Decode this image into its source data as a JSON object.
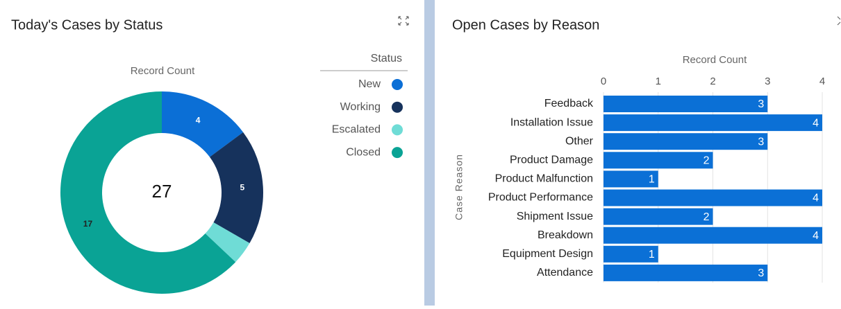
{
  "chart_data": [
    {
      "type": "donut",
      "title": "Today's Cases by Status",
      "axis_label": "Record Count",
      "legend_title": "Status",
      "total": 27,
      "categories": [
        "New",
        "Working",
        "Escalated",
        "Closed"
      ],
      "values": [
        4,
        5,
        1,
        17
      ],
      "value_labels": [
        "4",
        "5",
        null,
        "17"
      ],
      "colors": [
        "#0b6fd6",
        "#16325c",
        "#6fdcd6",
        "#0aa395"
      ]
    },
    {
      "type": "hbar",
      "title": "Open Cases by Reason",
      "x_label": "Record Count",
      "y_label": "Case Reason",
      "categories": [
        "Feedback",
        "Installation Issue",
        "Other",
        "Product Damage",
        "Product Malfunction",
        "Product Performance",
        "Shipment Issue",
        "Breakdown",
        "Equipment Design",
        "Attendance"
      ],
      "values": [
        3,
        4,
        3,
        2,
        1,
        4,
        2,
        4,
        1,
        3
      ],
      "color": "#0b70d6",
      "xlim": [
        0,
        4
      ],
      "xticks": [
        0,
        1,
        2,
        3,
        4
      ],
      "grid": true
    }
  ]
}
